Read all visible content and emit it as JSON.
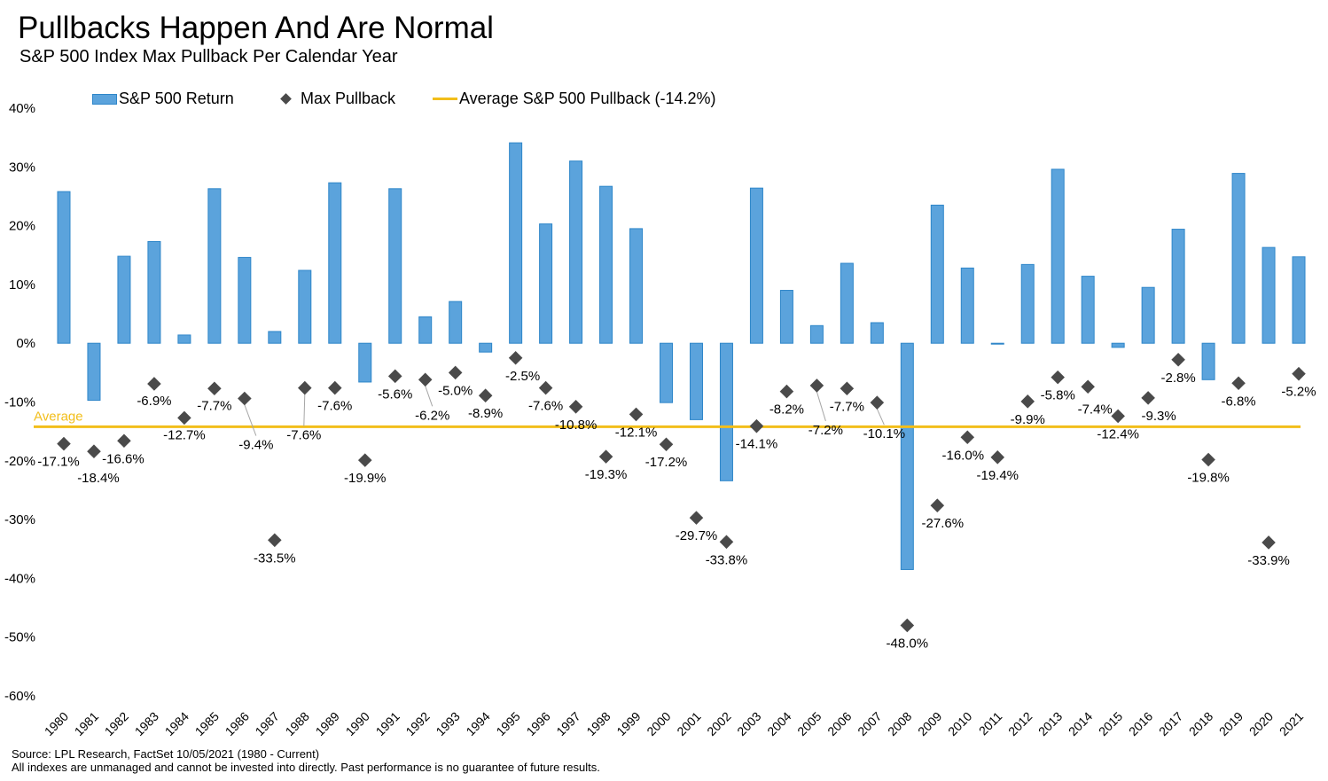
{
  "header": {
    "title": "Pullbacks Happen And Are Normal",
    "subtitle": "S&P 500 Index Max Pullback Per Calendar Year"
  },
  "legend": {
    "return_label": "S&P 500 Return",
    "pullback_label": "Max Pullback",
    "average_label": "Average S&P 500 Pullback (-14.2%)"
  },
  "footer": {
    "source": "Source: LPL Research, FactSet 10/05/2021 (1980 - Current)",
    "disclaimer": "All indexes are unmanaged and cannot be invested into directly. Past performance is no guarantee of future results."
  },
  "colors": {
    "bar_fill": "#5ba3dc",
    "bar_stroke": "#2e86c9",
    "diamond": "#4a4a4a",
    "average_line": "#f2be1a",
    "leader_line": "#a6a6a6"
  },
  "chart_data": {
    "type": "bar",
    "title": "Pullbacks Happen And Are Normal",
    "subtitle": "S&P 500 Index Max Pullback Per Calendar Year",
    "categories": [
      "1980",
      "1981",
      "1982",
      "1983",
      "1984",
      "1985",
      "1986",
      "1987",
      "1988",
      "1989",
      "1990",
      "1991",
      "1992",
      "1993",
      "1994",
      "1995",
      "1996",
      "1997",
      "1998",
      "1999",
      "2000",
      "2001",
      "2002",
      "2003",
      "2004",
      "2005",
      "2006",
      "2007",
      "2008",
      "2009",
      "2010",
      "2011",
      "2012",
      "2013",
      "2014",
      "2015",
      "2016",
      "2017",
      "2018",
      "2019",
      "2020",
      "2021"
    ],
    "series": [
      {
        "name": "S&P 500 Return",
        "type": "bar",
        "values": [
          25.8,
          -9.7,
          14.8,
          17.3,
          1.4,
          26.3,
          14.6,
          2.0,
          12.4,
          27.3,
          -6.6,
          26.3,
          4.5,
          7.1,
          -1.5,
          34.1,
          20.3,
          31.0,
          26.7,
          19.5,
          -10.1,
          -13.0,
          -23.4,
          26.4,
          9.0,
          3.0,
          13.6,
          3.5,
          -38.5,
          23.5,
          12.8,
          0.0,
          13.4,
          29.6,
          11.4,
          -0.7,
          9.5,
          19.4,
          -6.2,
          28.9,
          16.3,
          14.7
        ]
      },
      {
        "name": "Max Pullback",
        "type": "scatter",
        "values": [
          -17.1,
          -18.4,
          -16.6,
          -6.9,
          -12.7,
          -7.7,
          -9.4,
          -33.5,
          -7.6,
          -7.6,
          -19.9,
          -5.6,
          -6.2,
          -5.0,
          -8.9,
          -2.5,
          -7.6,
          -10.8,
          -19.3,
          -12.1,
          -17.2,
          -29.7,
          -33.8,
          -14.1,
          -8.2,
          -7.2,
          -7.7,
          -10.1,
          -48.0,
          -27.6,
          -16.0,
          -19.4,
          -9.9,
          -5.8,
          -7.4,
          -12.4,
          -9.3,
          -2.8,
          -19.8,
          -6.8,
          -33.9,
          -5.2
        ],
        "labels": [
          "-17.1%",
          "-18.4%",
          "-16.6%",
          "-6.9%",
          "-12.7%",
          "-7.7%",
          "-9.4%",
          "-33.5%",
          "-7.6%",
          "-7.6%",
          "-19.9%",
          "-5.6%",
          "-6.2%",
          "-5.0%",
          "-8.9%",
          "-2.5%",
          "-7.6%",
          "-10.8%",
          "-19.3%",
          "-12.1%",
          "-17.2%",
          "-29.7%",
          "-33.8%",
          "-14.1%",
          "-8.2%",
          "-7.2%",
          "-7.7%",
          "-10.1%",
          "-48.0%",
          "-27.6%",
          "-16.0%",
          "-19.4%",
          "-9.9%",
          "-5.8%",
          "-7.4%",
          "-12.4%",
          "-9.3%",
          "-2.8%",
          "-19.8%",
          "-6.8%",
          "-33.9%",
          "-5.2%"
        ]
      },
      {
        "name": "Average S&P 500 Pullback (-14.2%)",
        "type": "line",
        "value": -14.2,
        "annotation": "Average"
      }
    ],
    "yticks": [
      "40%",
      "30%",
      "20%",
      "10%",
      "0%",
      "-10%",
      "-20%",
      "-30%",
      "-40%",
      "-50%",
      "-60%"
    ],
    "ylim": [
      -60,
      40
    ],
    "grid": false,
    "legend_position": "top"
  }
}
